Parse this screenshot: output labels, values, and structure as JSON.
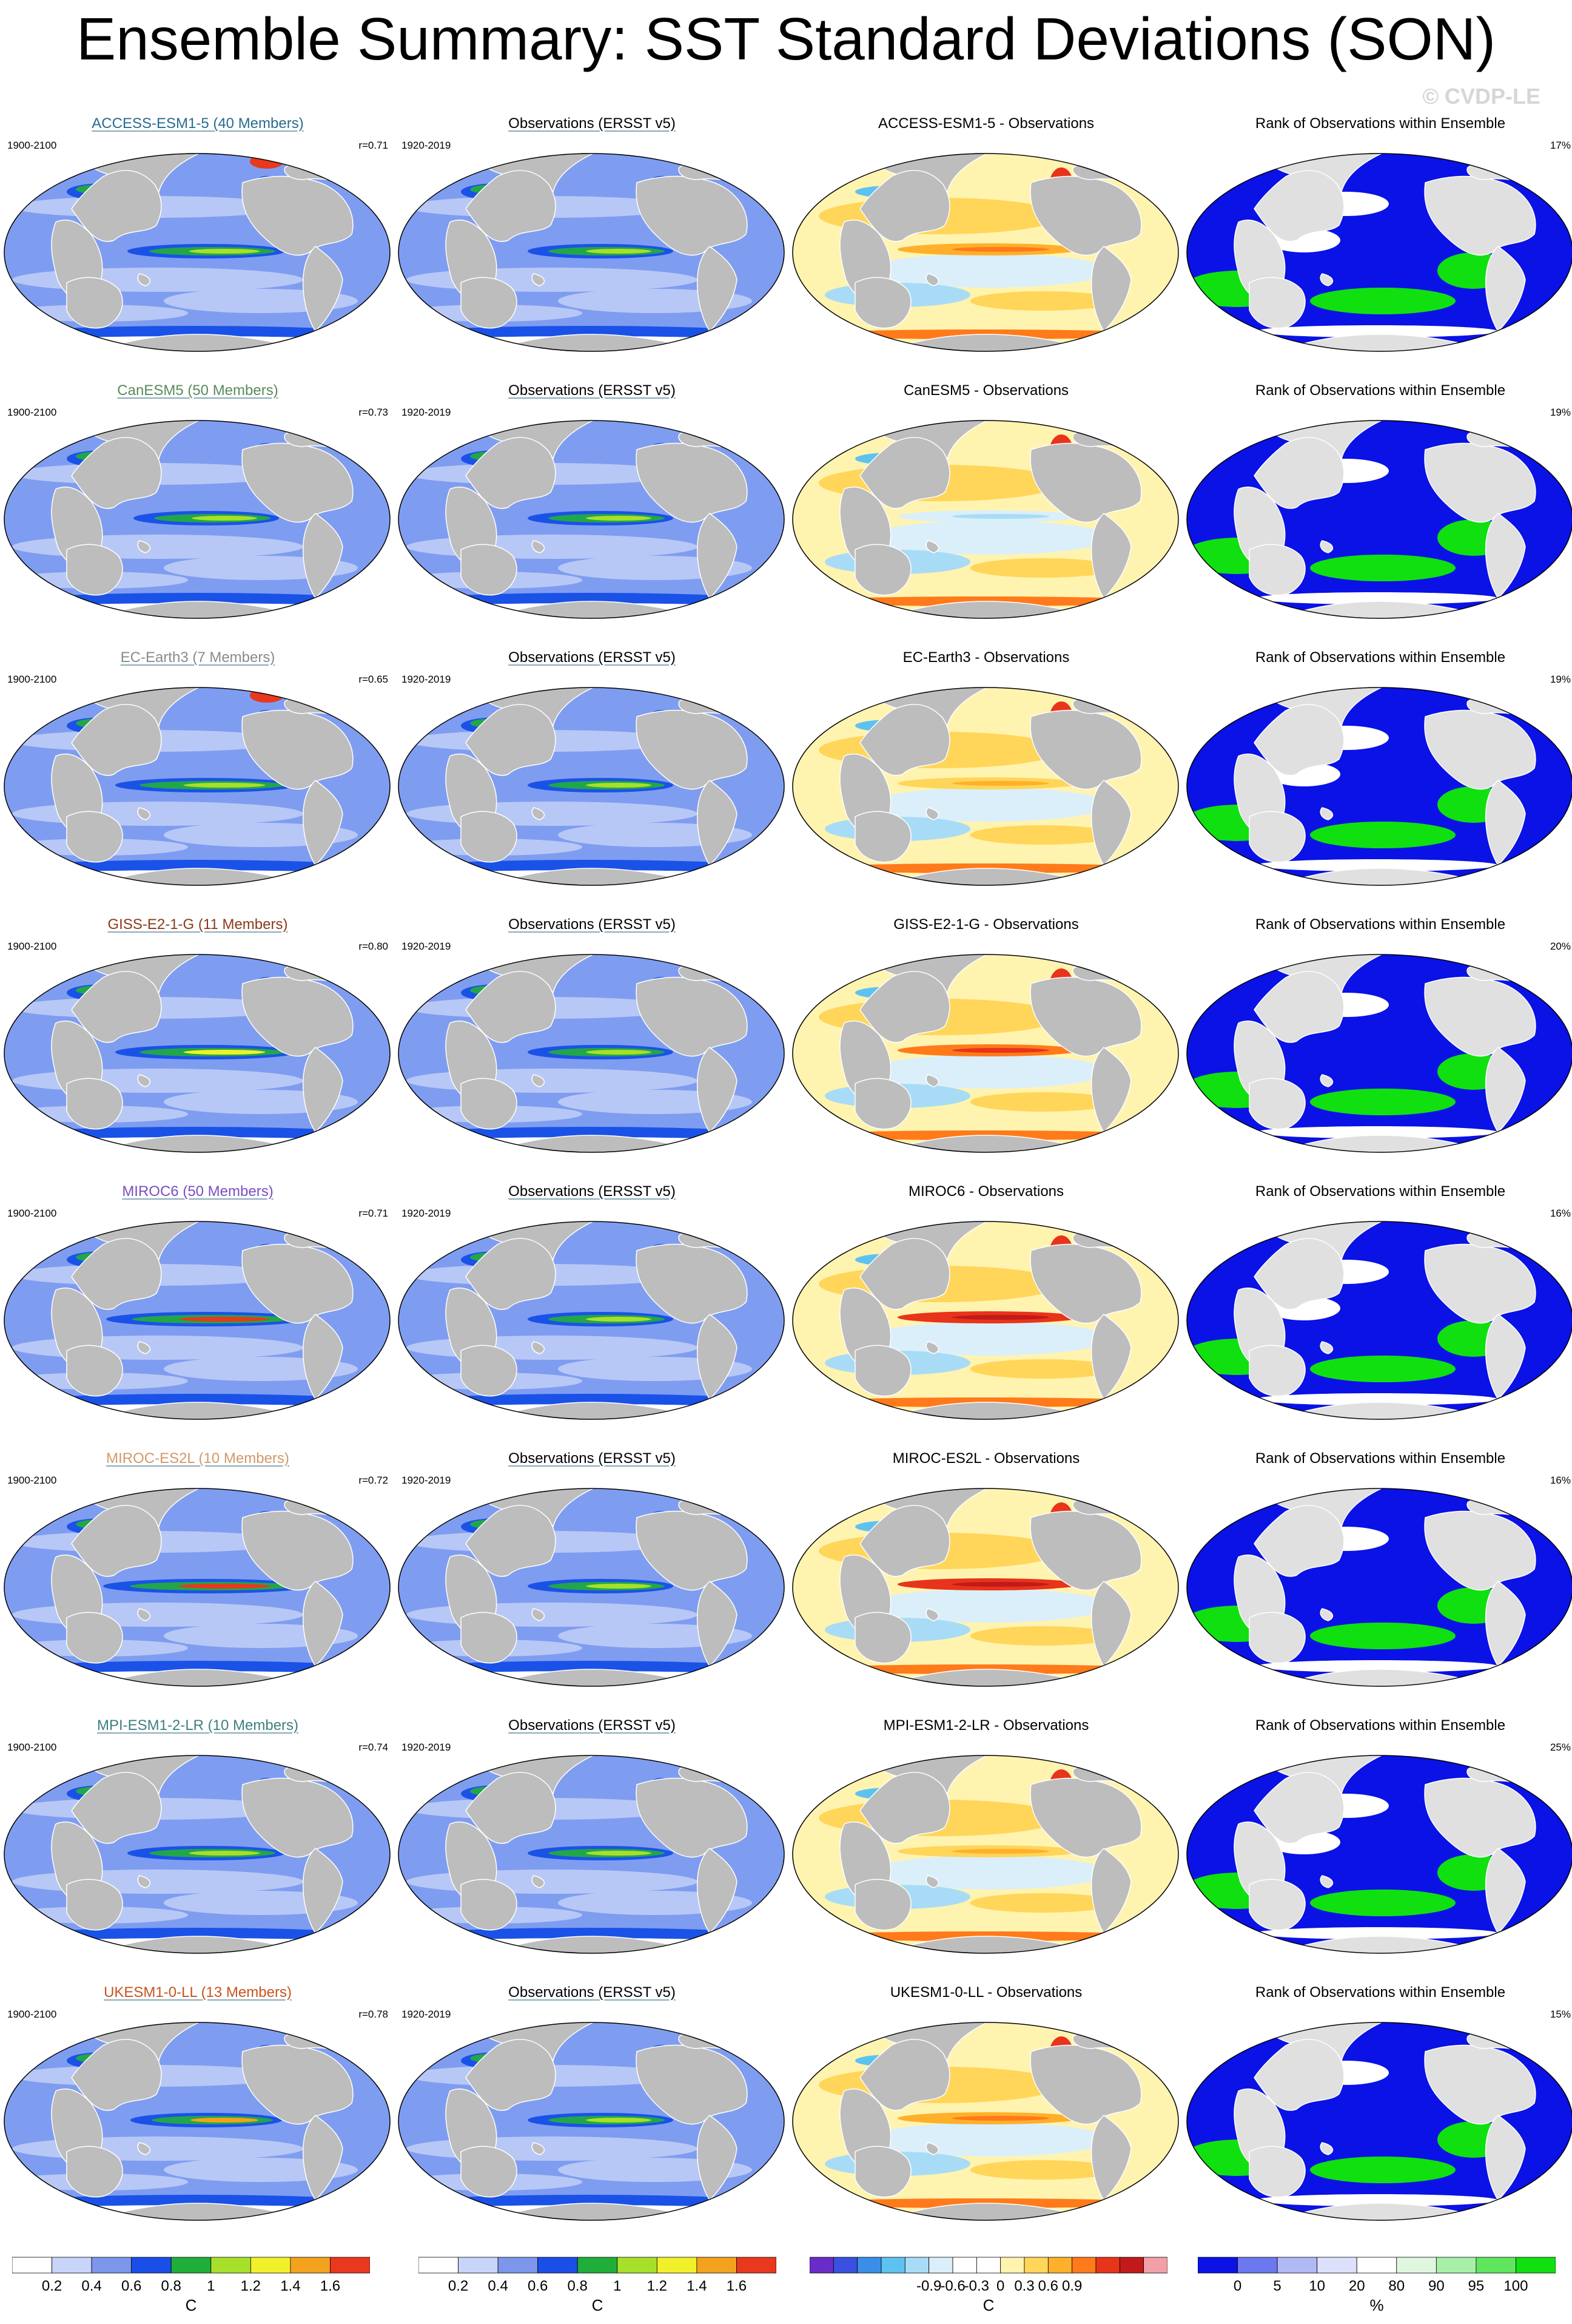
{
  "title": "Ensemble Summary: SST Standard Deviations (SON)",
  "watermark": "© CVDP-LE",
  "rows": [
    {
      "model_title": "ACCESS-ESM1-5 (40 Members)",
      "model_color": "#2a6b8f",
      "years": "1900-2100",
      "corr": "r=0.71",
      "obs_title": "Observations (ERSST v5)",
      "obs_years": "1920-2019",
      "diff_title": "ACCESS-ESM1-5 - Observations",
      "rank_title": "Rank of Observations within Ensemble",
      "rank_pct": "17%"
    },
    {
      "model_title": "CanESM5 (50 Members)",
      "model_color": "#5a8a5a",
      "years": "1900-2100",
      "corr": "r=0.73",
      "obs_title": "Observations (ERSST v5)",
      "obs_years": "1920-2019",
      "diff_title": "CanESM5 - Observations",
      "rank_title": "Rank of Observations within Ensemble",
      "rank_pct": "19%"
    },
    {
      "model_title": "EC-Earth3 (7 Members)",
      "model_color": "#8a8a8a",
      "years": "1900-2100",
      "corr": "r=0.65",
      "obs_title": "Observations (ERSST v5)",
      "obs_years": "1920-2019",
      "diff_title": "EC-Earth3 - Observations",
      "rank_title": "Rank of Observations within Ensemble",
      "rank_pct": "19%"
    },
    {
      "model_title": "GISS-E2-1-G (11 Members)",
      "model_color": "#8b3a1a",
      "years": "1900-2100",
      "corr": "r=0.80",
      "obs_title": "Observations (ERSST v5)",
      "obs_years": "1920-2019",
      "diff_title": "GISS-E2-1-G - Observations",
      "rank_title": "Rank of Observations within Ensemble",
      "rank_pct": "20%"
    },
    {
      "model_title": "MIROC6 (50 Members)",
      "model_color": "#7a4ec0",
      "years": "1900-2100",
      "corr": "r=0.71",
      "obs_title": "Observations (ERSST v5)",
      "obs_years": "1920-2019",
      "diff_title": "MIROC6 - Observations",
      "rank_title": "Rank of Observations within Ensemble",
      "rank_pct": "16%"
    },
    {
      "model_title": "MIROC-ES2L (10 Members)",
      "model_color": "#d2996a",
      "years": "1900-2100",
      "corr": "r=0.72",
      "obs_title": "Observations (ERSST v5)",
      "obs_years": "1920-2019",
      "diff_title": "MIROC-ES2L - Observations",
      "rank_title": "Rank of Observations within Ensemble",
      "rank_pct": "16%"
    },
    {
      "model_title": "MPI-ESM1-2-LR (10 Members)",
      "model_color": "#3f7f80",
      "years": "1900-2100",
      "corr": "r=0.74",
      "obs_title": "Observations (ERSST v5)",
      "obs_years": "1920-2019",
      "diff_title": "MPI-ESM1-2-LR - Observations",
      "rank_title": "Rank of Observations within Ensemble",
      "rank_pct": "25%"
    },
    {
      "model_title": "UKESM1-0-LL (13 Members)",
      "model_color": "#c8541e",
      "years": "1900-2100",
      "corr": "r=0.78",
      "obs_title": "Observations (ERSST v5)",
      "obs_years": "1920-2019",
      "diff_title": "UKESM1-0-LL - Observations",
      "rank_title": "Rank of Observations within Ensemble",
      "rank_pct": "15%"
    }
  ],
  "colorbars": [
    {
      "unit": "C",
      "ticks": [
        "0.2",
        "0.4",
        "0.6",
        "0.8",
        "1",
        "1.2",
        "1.4",
        "1.6"
      ],
      "colors": [
        "#ffffff",
        "#c8d4fa",
        "#7b96ea",
        "#1a4ee8",
        "#1fae3a",
        "#a7e02a",
        "#f2f02a",
        "#f3a21e",
        "#e8381e"
      ]
    },
    {
      "unit": "C",
      "ticks": [
        "0.2",
        "0.4",
        "0.6",
        "0.8",
        "1",
        "1.2",
        "1.4",
        "1.6"
      ],
      "colors": [
        "#ffffff",
        "#c8d4fa",
        "#7b96ea",
        "#1a4ee8",
        "#1fae3a",
        "#a7e02a",
        "#f2f02a",
        "#f3a21e",
        "#e8381e"
      ]
    },
    {
      "unit": "C",
      "ticks": [
        "-0.9",
        "-0.6",
        "-0.3",
        "0",
        "0.3",
        "0.6",
        "0.9"
      ],
      "colors": [
        "#6a2cc8",
        "#3a50e0",
        "#3a8ee8",
        "#5ec2f0",
        "#a8dcf6",
        "#dbeffa",
        "#ffffff",
        "#ffffff",
        "#fff3b0",
        "#ffd65a",
        "#ffb02a",
        "#ff7a1a",
        "#e8341a",
        "#c21a1a",
        "#f2a0a8"
      ]
    },
    {
      "unit": "%",
      "ticks": [
        "0",
        "5",
        "10",
        "20",
        "80",
        "90",
        "95",
        "100"
      ],
      "colors": [
        "#0a12e6",
        "#6b78ef",
        "#b0b8f6",
        "#dde0fb",
        "#ffffff",
        "#dff7df",
        "#a8f0a8",
        "#5ee65e",
        "#10e010"
      ]
    }
  ]
}
